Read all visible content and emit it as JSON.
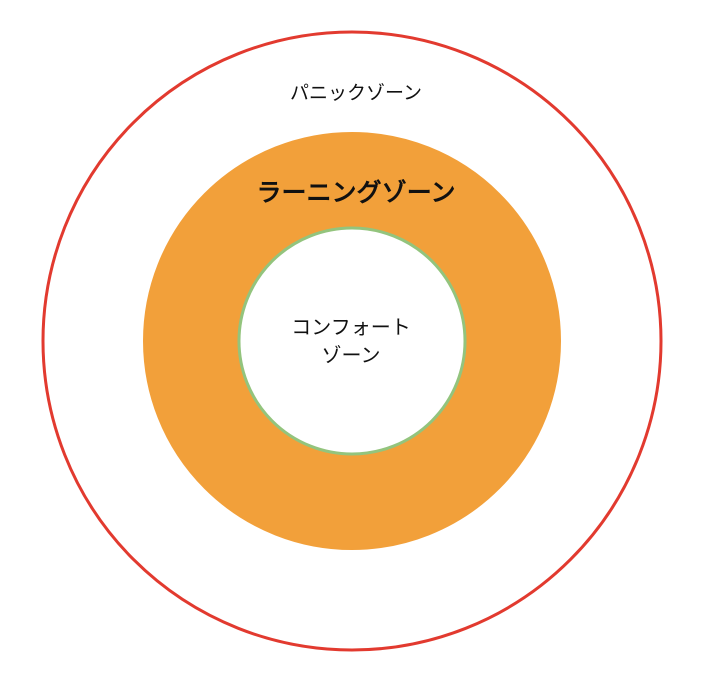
{
  "diagram": {
    "zones": [
      {
        "id": "panic",
        "label": "パニックゾーン",
        "fill": "#ffffff",
        "stroke": "#e23a2f"
      },
      {
        "id": "learning",
        "label": "ラーニングゾーン",
        "fill": "#f2a03a",
        "stroke": "#f2a03a"
      },
      {
        "id": "comfort",
        "label_lines": [
          "コンフォート",
          "ゾーン"
        ],
        "fill": "#ffffff",
        "stroke": "#93c47d"
      }
    ]
  }
}
